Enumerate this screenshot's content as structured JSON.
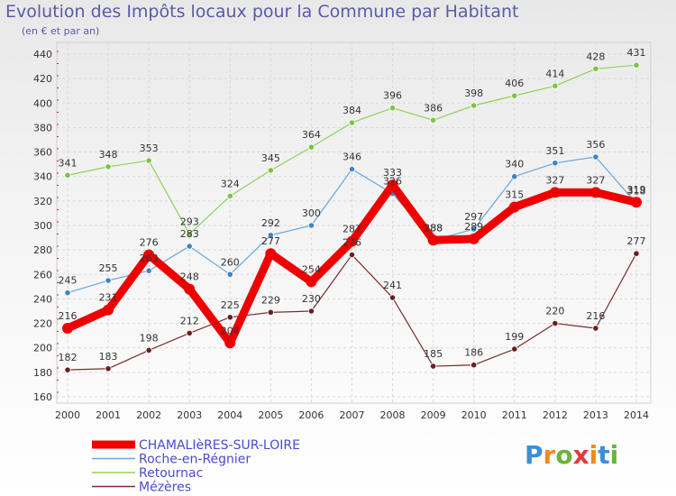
{
  "header": {
    "title": "Evolution des Impôts locaux pour la Commune par Habitant",
    "subtitle": "(en € et par an)"
  },
  "logo": {
    "text": "Proxiti"
  },
  "chart_data": {
    "type": "line",
    "x": [
      "2000",
      "2001",
      "2002",
      "2003",
      "2004",
      "2005",
      "2006",
      "2007",
      "2008",
      "2009",
      "2010",
      "2011",
      "2012",
      "2013",
      "2014"
    ],
    "yticks": [
      160,
      180,
      200,
      220,
      240,
      260,
      280,
      300,
      320,
      340,
      360,
      380,
      400,
      420,
      440
    ],
    "ylim": [
      160,
      440
    ],
    "grid": true,
    "legend_position": "bottom-left",
    "series": [
      {
        "name": "Retournac",
        "color": "#8fd15a",
        "point_color": "#7cc444",
        "width": 1.2,
        "values": [
          341,
          348,
          353,
          293,
          324,
          345,
          364,
          384,
          396,
          386,
          398,
          406,
          414,
          428,
          431
        ],
        "labels": [
          "341",
          "348",
          "353",
          "293",
          "324",
          "345",
          "364",
          "384",
          "396",
          "386",
          "398",
          "406",
          "414",
          "428",
          "431"
        ]
      },
      {
        "name": "Roche-en-Régnier",
        "color": "#6aa7d8",
        "point_color": "#3d85c6",
        "width": 1.2,
        "values": [
          245,
          255,
          263,
          283,
          260,
          292,
          300,
          346,
          326,
          288,
          297,
          340,
          351,
          356,
          318
        ],
        "labels": [
          "245",
          "255",
          "263",
          "283",
          "260",
          "292",
          "300",
          "346",
          "326",
          "288",
          "297",
          "340",
          "351",
          "356",
          "318"
        ]
      },
      {
        "name": "Mézères",
        "color": "#7a2e2e",
        "point_color": "#6b1f1f",
        "width": 1.2,
        "values": [
          182,
          183,
          198,
          212,
          225,
          229,
          230,
          276,
          241,
          185,
          186,
          199,
          220,
          216,
          277
        ],
        "labels": [
          "182",
          "183",
          "198",
          "212",
          "225",
          "229",
          "230",
          "276",
          "241",
          "185",
          "186",
          "199",
          "220",
          "216",
          "277"
        ]
      },
      {
        "name": "CHAMALIèRES-SUR-LOIRE",
        "color": "#ee0000",
        "point_color": "#ee0000",
        "width": 9,
        "values": [
          216,
          231,
          276,
          248,
          204,
          277,
          254,
          287,
          333,
          288,
          289,
          315,
          327,
          327,
          319
        ],
        "labels": [
          "216",
          "231",
          "276",
          "248",
          "204",
          "277",
          "254",
          "287",
          "333",
          "288",
          "289",
          "315",
          "327",
          "327",
          "319"
        ]
      }
    ],
    "legend_order": [
      "CHAMALIèRES-SUR-LOIRE",
      "Roche-en-Régnier",
      "Retournac",
      "Mézères"
    ]
  }
}
